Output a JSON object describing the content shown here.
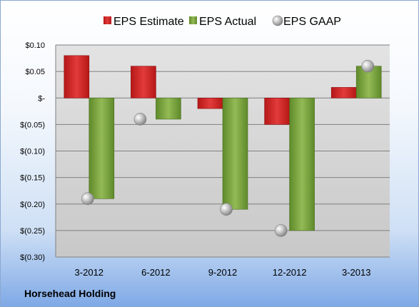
{
  "company": "Horsehead Holding",
  "colors": {
    "estimate": "#d42a2a",
    "actual": "#7da340",
    "gaap": "#a9a9a9",
    "plot_bg": "#d6d6d6",
    "grid": "#7f7f7f"
  },
  "chart_data": {
    "type": "bar",
    "categories": [
      "3-2012",
      "6-2012",
      "9-2012",
      "12-2012",
      "3-2013"
    ],
    "series": [
      {
        "name": "EPS Estimate",
        "kind": "bar",
        "values": [
          0.08,
          0.06,
          -0.02,
          -0.05,
          0.02
        ]
      },
      {
        "name": "EPS Actual",
        "kind": "bar",
        "values": [
          -0.19,
          -0.04,
          -0.21,
          -0.25,
          0.06
        ]
      },
      {
        "name": "EPS GAAP",
        "kind": "marker",
        "values": [
          -0.19,
          -0.04,
          -0.21,
          -0.25,
          0.06
        ]
      }
    ],
    "ylim": [
      -0.3,
      0.1
    ],
    "yticks": [
      0.1,
      0.05,
      0,
      -0.05,
      -0.1,
      -0.15,
      -0.2,
      -0.25,
      -0.3
    ],
    "ytick_labels": [
      "$0.10",
      "$0.05",
      "$-",
      "$(0.05)",
      "$(0.10)",
      "$(0.15)",
      "$(0.20)",
      "$(0.25)",
      "$(0.30)"
    ],
    "grid": true,
    "legend": "top-center"
  }
}
